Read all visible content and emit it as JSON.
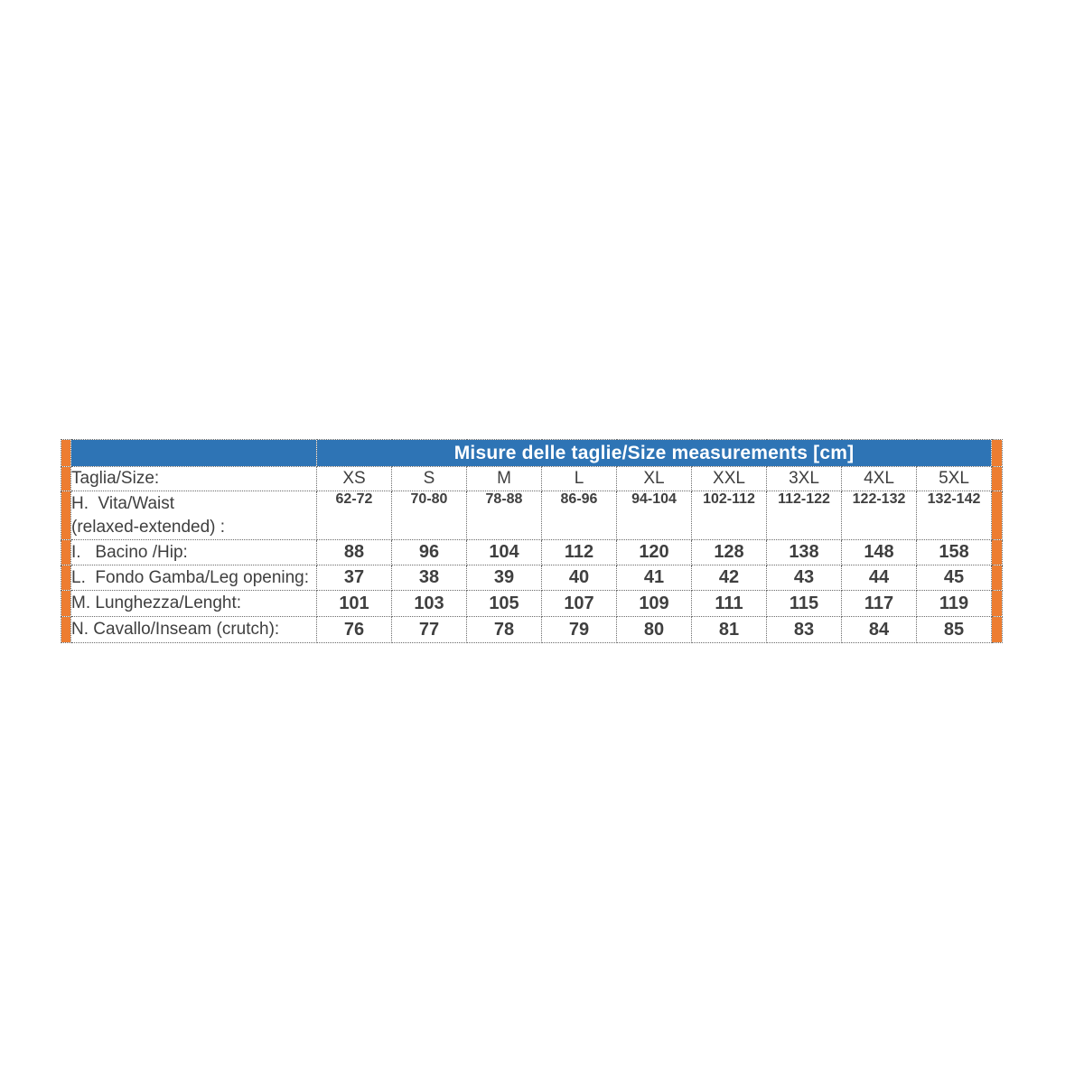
{
  "colors": {
    "header_bg": "#2E74B5",
    "header_text": "#FFFFFF",
    "accent_bar": "#ED7D31",
    "body_text": "#3F3F3F",
    "border": "#6A6A6A"
  },
  "table": {
    "title": "Misure delle taglie/Size measurements [cm]",
    "size_row": {
      "label": "Taglia/Size:",
      "sizes": [
        "XS",
        "S",
        "M",
        "L",
        "XL",
        "XXL",
        "3XL",
        "4XL",
        "5XL"
      ]
    },
    "rows": [
      {
        "label": "H.  Vita/Waist\n(relaxed-extended) :",
        "values": [
          "62-72",
          "70-80",
          "78-88",
          "86-96",
          "94-104",
          "102-112",
          "112-122",
          "122-132",
          "132-142"
        ]
      },
      {
        "label": "I.   Bacino /Hip:",
        "values": [
          "88",
          "96",
          "104",
          "112",
          "120",
          "128",
          "138",
          "148",
          "158"
        ]
      },
      {
        "label": "L.  Fondo Gamba/Leg opening:",
        "values": [
          "37",
          "38",
          "39",
          "40",
          "41",
          "42",
          "43",
          "44",
          "45"
        ]
      },
      {
        "label": "M. Lunghezza/Lenght:",
        "values": [
          "101",
          "103",
          "105",
          "107",
          "109",
          "111",
          "115",
          "117",
          "119"
        ]
      },
      {
        "label": "N. Cavallo/Inseam (crutch):",
        "values": [
          "76",
          "77",
          "78",
          "79",
          "80",
          "81",
          "83",
          "84",
          "85"
        ]
      }
    ]
  }
}
